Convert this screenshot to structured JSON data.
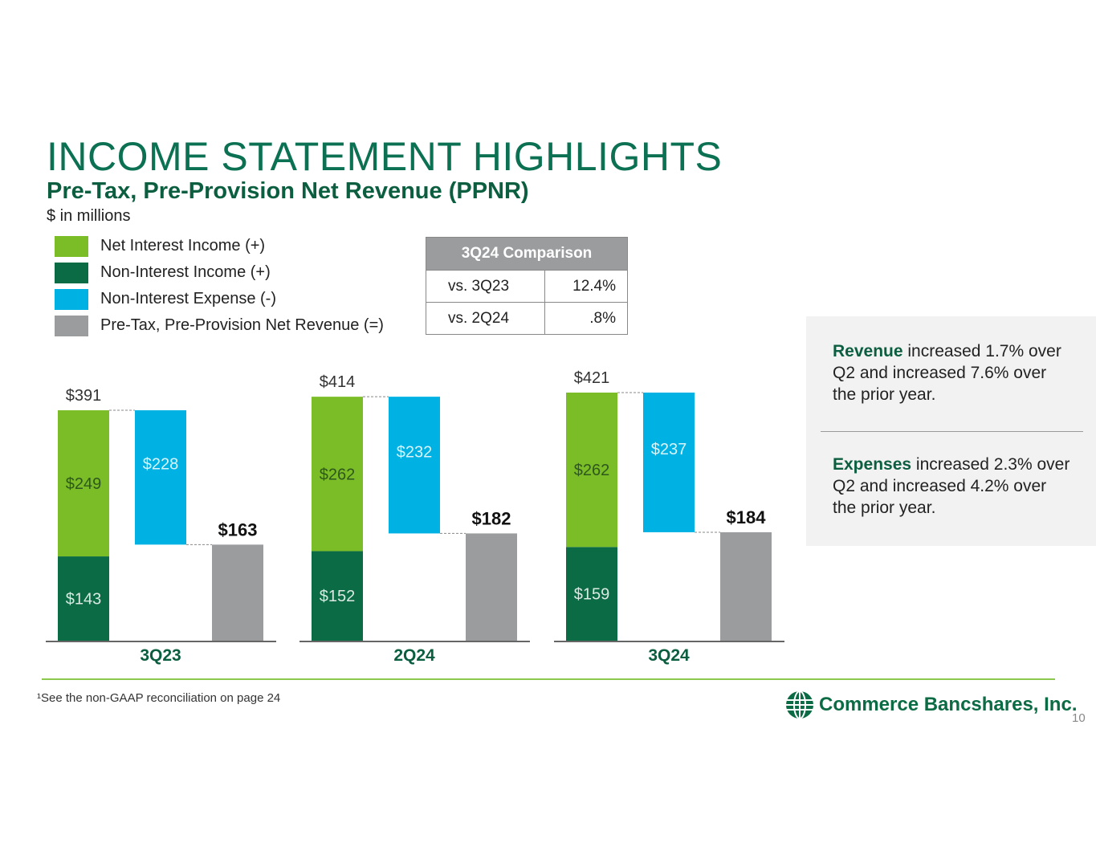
{
  "title": "INCOME STATEMENT HIGHLIGHTS",
  "subtitle": "Pre-Tax, Pre-Provision Net Revenue (PPNR)",
  "units": "$ in millions",
  "legend": [
    {
      "label": "Net Interest Income (+)",
      "color": "#7bbd26"
    },
    {
      "label": "Non-Interest Income (+)",
      "color": "#0b6b44"
    },
    {
      "label": "Non-Interest Expense (-)",
      "color": "#00b2e3"
    },
    {
      "label": "Pre-Tax, Pre-Provision Net Revenue (=)",
      "color": "#9a9c9e"
    }
  ],
  "comparison": {
    "header": "3Q24 Comparison",
    "rows": [
      {
        "label": "vs. 3Q23",
        "value": "12.4%"
      },
      {
        "label": "vs. 2Q24",
        "value": ".8%"
      }
    ]
  },
  "insights": {
    "revenue_keyword": "Revenue",
    "revenue_text": " increased 1.7% over Q2 and increased 7.6% over the prior year.",
    "expenses_keyword": "Expenses",
    "expenses_text": " increased 2.3% over Q2 and increased 4.2% over the prior year."
  },
  "chart_data": {
    "type": "bar",
    "title": "Pre-Tax, Pre-Provision Net Revenue (PPNR)",
    "ylabel": "$ in millions",
    "ylim": [
      0,
      421
    ],
    "categories": [
      "3Q23",
      "2Q24",
      "3Q24"
    ],
    "series": [
      {
        "name": "Non-Interest Income (+)",
        "color": "#0b6b44",
        "values": [
          143,
          152,
          159
        ],
        "labels": [
          "$143",
          "$152",
          "$159"
        ]
      },
      {
        "name": "Net Interest Income (+)",
        "color": "#7bbd26",
        "values": [
          249,
          262,
          262
        ],
        "labels": [
          "$249",
          "$262",
          "$262"
        ]
      },
      {
        "name": "Non-Interest Expense (-)",
        "color": "#00b2e3",
        "values": [
          228,
          232,
          237
        ],
        "labels": [
          "$228",
          "$232",
          "$237"
        ]
      },
      {
        "name": "Pre-Tax, Pre-Provision Net Revenue (=)",
        "color": "#9a9c9e",
        "values": [
          163,
          182,
          184
        ],
        "labels": [
          "$163",
          "$182",
          "$184"
        ]
      }
    ],
    "totals": [
      391,
      414,
      421
    ],
    "total_labels": [
      "$391",
      "$414",
      "$421"
    ]
  },
  "footnote": "¹See the non-GAAP reconciliation on page 24",
  "logo_text": "Commerce Bancshares, Inc.",
  "page_number": "10"
}
